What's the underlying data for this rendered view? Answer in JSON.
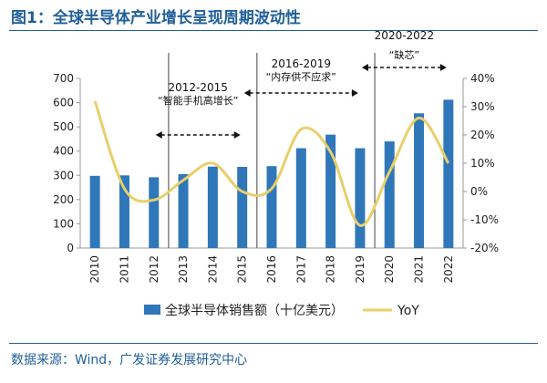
{
  "header": {
    "title": "图1：全球半导体产业增长呈现周期波动性"
  },
  "footer": {
    "source": "数据来源：Wind，广发证券发展研究中心"
  },
  "colors": {
    "bar": "#2f77b9",
    "line": "#e8cf6b",
    "title": "#1f5f9a"
  },
  "chart_data": {
    "type": "bar",
    "title": "",
    "categories": [
      "2010",
      "2011",
      "2012",
      "2013",
      "2014",
      "2015",
      "2016",
      "2017",
      "2018",
      "2019",
      "2020",
      "2021",
      "2022"
    ],
    "series": [
      {
        "name": "全球半导体销售额（十亿美元）",
        "type": "bar",
        "axis": "left",
        "values": [
          298,
          300,
          292,
          305,
          336,
          335,
          338,
          412,
          468,
          412,
          440,
          556,
          612
        ]
      },
      {
        "name": "YoY",
        "type": "line",
        "axis": "right",
        "values": [
          32,
          1,
          -3,
          4,
          10,
          0,
          1,
          22,
          14,
          -12,
          7,
          26,
          10
        ]
      }
    ],
    "ylim": [
      0,
      700
    ],
    "y2lim": [
      -20,
      40
    ],
    "yticks": [
      "0",
      "100",
      "200",
      "300",
      "400",
      "500",
      "600",
      "700"
    ],
    "y2ticks": [
      "-20%",
      "-10%",
      "0%",
      "10%",
      "20%",
      "30%",
      "40%"
    ],
    "grid": false,
    "legend_position": "bottom",
    "annotations": [
      {
        "period": "2012-2015",
        "label": "“智能手机高增长”"
      },
      {
        "period": "2016-2019",
        "label": "“内存供不应求”"
      },
      {
        "period": "2020-2022",
        "label": "“缺芯”"
      }
    ]
  }
}
